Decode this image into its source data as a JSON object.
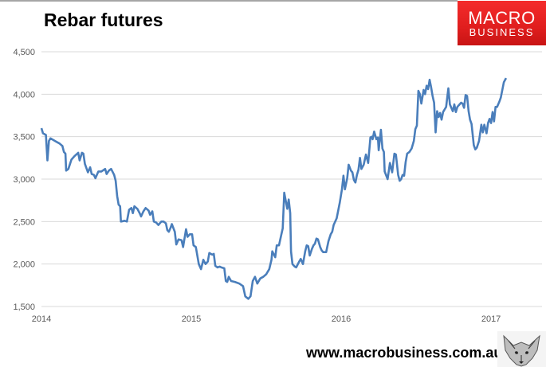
{
  "chart_data": {
    "type": "line",
    "title": "Rebar futures",
    "xlabel": "",
    "ylabel": "",
    "xlim": [
      2014,
      2017.34
    ],
    "ylim": [
      1500,
      4500
    ],
    "x_ticks": [
      2014,
      2015,
      2016,
      2017
    ],
    "x_tick_labels": [
      "2014",
      "2015",
      "2016",
      "2017"
    ],
    "y_ticks": [
      1500,
      2000,
      2500,
      3000,
      3500,
      4000,
      4500
    ],
    "y_tick_labels": [
      "1,500",
      "2,000",
      "2,500",
      "3,000",
      "3,500",
      "4,000",
      "4,500"
    ],
    "grid": true,
    "legend": "none",
    "line_color": "#4a7ebb",
    "x": [
      2014.0,
      2014.01,
      2014.03,
      2014.04,
      2014.05,
      2014.06,
      2014.1,
      2014.12,
      2014.14,
      2014.15,
      2014.16,
      2014.165,
      2014.18,
      2014.2,
      2014.22,
      2014.245,
      2014.255,
      2014.27,
      2014.28,
      2014.29,
      2014.31,
      2014.325,
      2014.335,
      2014.35,
      2014.36,
      2014.38,
      2014.4,
      2014.425,
      2014.435,
      2014.45,
      2014.465,
      2014.485,
      2014.495,
      2014.505,
      2014.515,
      2014.525,
      2014.53,
      2014.555,
      2014.57,
      2014.585,
      2014.6,
      2014.61,
      2014.62,
      2014.64,
      2014.655,
      2014.665,
      2014.68,
      2014.695,
      2014.715,
      2014.725,
      2014.74,
      2014.75,
      2014.765,
      2014.78,
      2014.8,
      2014.815,
      2014.83,
      2014.84,
      2014.85,
      2014.86,
      2014.87,
      2014.89,
      2014.9,
      2014.915,
      2014.935,
      2014.945,
      2014.965,
      2014.975,
      2014.99,
      2015.005,
      2015.015,
      2015.03,
      2015.05,
      2015.065,
      2015.08,
      2015.095,
      2015.11,
      2015.12,
      2015.14,
      2015.15,
      2015.16,
      2015.175,
      2015.19,
      2015.2,
      2015.22,
      2015.23,
      2015.24,
      2015.25,
      2015.265,
      2015.29,
      2015.32,
      2015.345,
      2015.36,
      2015.38,
      2015.395,
      2015.41,
      2015.425,
      2015.44,
      2015.46,
      2015.48,
      2015.5,
      2015.52,
      2015.535,
      2015.54,
      2015.56,
      2015.57,
      2015.585,
      2015.6,
      2015.61,
      2015.62,
      2015.64,
      2015.65,
      2015.66,
      2015.665,
      2015.675,
      2015.69,
      2015.7,
      2015.72,
      2015.73,
      2015.745,
      2015.76,
      2015.77,
      2015.78,
      2015.79,
      2015.805,
      2015.815,
      2015.825,
      2015.835,
      2015.845,
      2015.86,
      2015.87,
      2015.88,
      2015.9,
      2015.915,
      2015.93,
      2015.94,
      2015.95,
      2015.97,
      2015.99,
      2016.005,
      2016.015,
      2016.025,
      2016.04,
      2016.05,
      2016.065,
      2016.075,
      2016.085,
      2016.095,
      2016.105,
      2016.115,
      2016.125,
      2016.135,
      2016.15,
      2016.165,
      2016.18,
      2016.195,
      2016.205,
      2016.21,
      2016.22,
      2016.235,
      2016.245,
      2016.25,
      2016.265,
      2016.275,
      2016.285,
      2016.29,
      2016.31,
      2016.325,
      2016.34,
      2016.355,
      2016.365,
      2016.38,
      2016.39,
      2016.4,
      2016.41,
      2016.42,
      2016.43,
      2016.44,
      2016.455,
      2016.47,
      2016.485,
      2016.495,
      2016.505,
      2016.515,
      2016.525,
      2016.535,
      2016.55,
      2016.56,
      2016.57,
      2016.58,
      2016.59,
      2016.6,
      2016.61,
      2016.62,
      2016.63,
      2016.64,
      2016.65,
      2016.66,
      2016.67,
      2016.68,
      2016.69,
      2016.7,
      2016.715,
      2016.725,
      2016.735,
      2016.745,
      2016.755,
      2016.765,
      2016.775,
      2016.785,
      2016.8,
      2016.81,
      2016.82,
      2016.83,
      2016.84,
      2016.85,
      2016.86,
      2016.87,
      2016.885,
      2016.895,
      2016.905,
      2016.92,
      2016.935,
      2016.945,
      2016.955,
      2016.97,
      2016.98,
      2016.99,
      2017.0,
      2017.01,
      2017.02,
      2017.03,
      2017.04,
      2017.055,
      2017.065,
      2017.075,
      2017.085,
      2017.1
    ],
    "y": [
      3600,
      3540,
      3520,
      3220,
      3450,
      3480,
      3440,
      3420,
      3390,
      3320,
      3300,
      3100,
      3120,
      3230,
      3270,
      3310,
      3220,
      3310,
      3300,
      3180,
      3080,
      3140,
      3060,
      3050,
      3010,
      3090,
      3090,
      3120,
      3060,
      3100,
      3120,
      3050,
      2980,
      2800,
      2700,
      2680,
      2500,
      2510,
      2500,
      2640,
      2660,
      2600,
      2680,
      2650,
      2600,
      2560,
      2620,
      2660,
      2630,
      2580,
      2620,
      2500,
      2490,
      2460,
      2500,
      2500,
      2480,
      2400,
      2380,
      2420,
      2470,
      2380,
      2230,
      2290,
      2280,
      2200,
      2410,
      2320,
      2350,
      2350,
      2220,
      2200,
      2000,
      1940,
      2050,
      2000,
      2030,
      2130,
      2110,
      2120,
      1980,
      1960,
      1970,
      1960,
      1950,
      1800,
      1790,
      1850,
      1800,
      1790,
      1770,
      1740,
      1620,
      1590,
      1620,
      1800,
      1850,
      1770,
      1830,
      1850,
      1880,
      1940,
      2050,
      2150,
      2080,
      2220,
      2220,
      2340,
      2420,
      2840,
      2650,
      2760,
      2600,
      2150,
      2000,
      1970,
      1960,
      2030,
      2060,
      2000,
      2150,
      2220,
      2210,
      2100,
      2180,
      2220,
      2240,
      2300,
      2290,
      2200,
      2160,
      2140,
      2140,
      2270,
      2350,
      2380,
      2460,
      2540,
      2720,
      2880,
      3040,
      2880,
      3010,
      3170,
      3100,
      3080,
      2990,
      2960,
      3050,
      3110,
      3250,
      3120,
      3170,
      3290,
      3190,
      3490,
      3500,
      3470,
      3560,
      3470,
      3490,
      3340,
      3580,
      3360,
      3320,
      3090,
      3000,
      3190,
      3080,
      3300,
      3290,
      3050,
      2980,
      3000,
      3050,
      3040,
      3200,
      3300,
      3320,
      3360,
      3450,
      3590,
      3630,
      4040,
      4000,
      3890,
      4050,
      4000,
      4100,
      4060,
      4170,
      4080,
      3980,
      3900,
      3550,
      3800,
      3730,
      3780,
      3700,
      3790,
      3820,
      3850,
      4070,
      3880,
      3840,
      3800,
      3880,
      3790,
      3850,
      3870,
      3900,
      3890,
      3840,
      3990,
      3980,
      3800,
      3700,
      3650,
      3400,
      3350,
      3370,
      3450,
      3640,
      3550,
      3640,
      3540,
      3660,
      3710,
      3660,
      3790,
      3680,
      3850,
      3850,
      3910,
      3960,
      4050,
      4140,
      4190
    ]
  },
  "logo": {
    "line1": "MACRO",
    "line2": "BUSINESS"
  },
  "footer": {
    "url": "www.macrobusiness.com.au"
  },
  "icons": {
    "mascot": "wolf-head-icon"
  }
}
